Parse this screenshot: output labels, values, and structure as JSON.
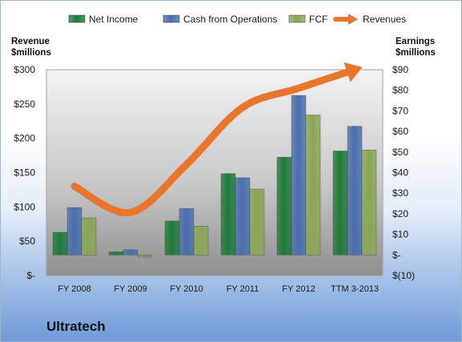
{
  "company": "Ultratech",
  "colors": {
    "net_income": "#1f7a3a",
    "cash_from_operations": "#4a6fad",
    "fcf": "#8aa655",
    "revenues": "#e8762c"
  },
  "chart_data": {
    "type": "bar",
    "title": "",
    "categories": [
      "FY 2008",
      "FY 2009",
      "FY 2010",
      "FY 2011",
      "FY 2012",
      "TTM 3-2013"
    ],
    "series": [
      {
        "name": "Net Income",
        "type": "bar",
        "axis": "right",
        "values": [
          11,
          1.5,
          16.5,
          39.5,
          47.5,
          50.5
        ]
      },
      {
        "name": "Cash from Operations",
        "type": "bar",
        "axis": "right",
        "values": [
          23,
          2.5,
          22.5,
          37.5,
          77.5,
          62.5
        ]
      },
      {
        "name": "FCF",
        "type": "bar",
        "axis": "right",
        "values": [
          18,
          -1,
          14,
          32,
          68,
          51
        ]
      },
      {
        "name": "Revenues",
        "type": "line",
        "axis": "left",
        "values": [
          130,
          92,
          162,
          245,
          273,
          300
        ]
      }
    ],
    "ylabel": "Revenue $millions",
    "ylabel_lines": [
      "Revenue",
      "$millions"
    ],
    "y2label": "Earnings $millions",
    "y2label_lines": [
      "Earnings",
      "$millions"
    ],
    "ylim": [
      0,
      300
    ],
    "y2lim": [
      -10,
      90
    ],
    "yticks": [
      "$-",
      "$50",
      "$100",
      "$150",
      "$200",
      "$250",
      "$300"
    ],
    "y2ticks": [
      "$(10)",
      "$-",
      "$10",
      "$20",
      "$30",
      "$40",
      "$50",
      "$60",
      "$70",
      "$80",
      "$90"
    ],
    "legend": [
      "Net Income",
      "Cash from Operations",
      "FCF",
      "Revenues"
    ],
    "legend_position": "top",
    "grid": false
  }
}
